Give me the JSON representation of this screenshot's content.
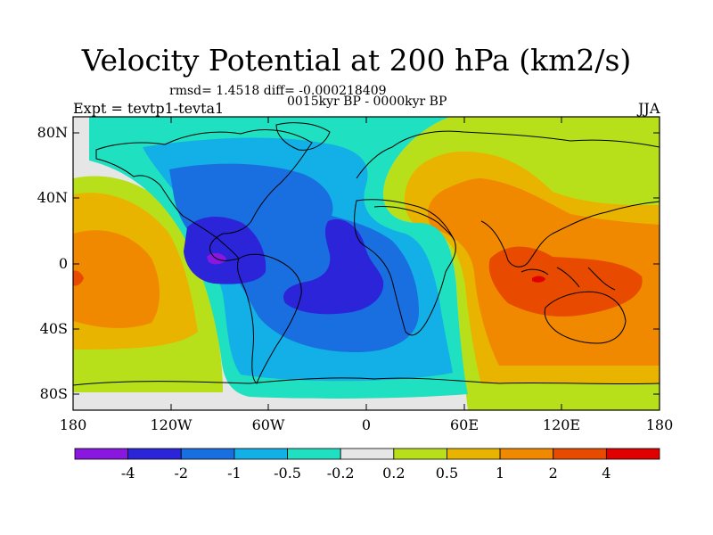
{
  "title": "Velocity Potential at 200 hPa (km2/s)",
  "stats_line": "rmsd= 1.4518 diff= -0.000218409",
  "period_line": "0015kyr BP - 0000kyr BP",
  "expt_label": "Expt = tevtp1-tevta1",
  "season_label": "JJA",
  "map": {
    "lon_ticks": [
      "180",
      "120W",
      "60W",
      "0",
      "60E",
      "120E",
      "180"
    ],
    "lat_ticks": [
      "80N",
      "40N",
      "0",
      "40S",
      "80S"
    ]
  },
  "colorbar": {
    "labels": [
      "-4",
      "-2",
      "-1",
      "-0.5",
      "-0.2",
      "0.2",
      "0.5",
      "1",
      "2",
      "4"
    ],
    "colors": [
      "#8a17e0",
      "#2b24d8",
      "#1a6fe0",
      "#12b0e6",
      "#1fe0c0",
      "#e6e6e6",
      "#b8e01a",
      "#e8b400",
      "#f08800",
      "#e84a00",
      "#e00000"
    ]
  }
}
